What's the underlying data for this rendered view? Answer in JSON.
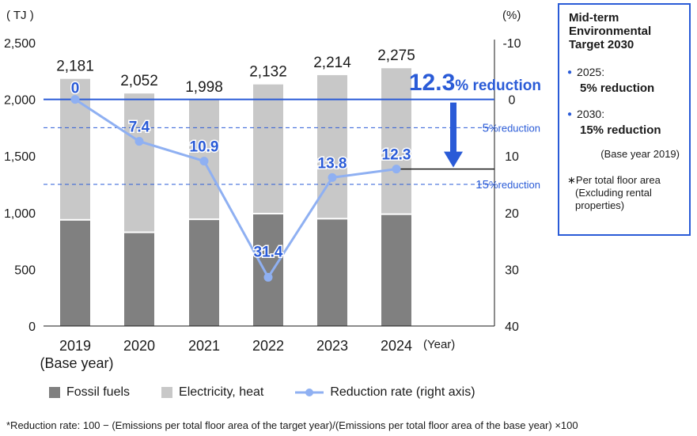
{
  "chart_data": {
    "type": "bar",
    "stacked": true,
    "units_left": "( TJ )",
    "units_right": "(%)",
    "categories": [
      "2019",
      "2020",
      "2021",
      "2022",
      "2023",
      "2024"
    ],
    "category_sub": [
      "(Base year)",
      "",
      "",
      "",
      "",
      ""
    ],
    "x_unit": "(Year)",
    "totals": [
      2181,
      2052,
      1998,
      2132,
      2214,
      2275
    ],
    "total_labels": [
      "2,181",
      "2,052",
      "1,998",
      "2,132",
      "2,214",
      "2,275"
    ],
    "series": [
      {
        "name": "Fossil fuels",
        "color": "#808080",
        "values": [
          930,
          820,
          935,
          985,
          940,
          980
        ]
      },
      {
        "name": "Electricity, heat",
        "color": "#c8c8c8",
        "values": [
          1251,
          1232,
          1063,
          1147,
          1274,
          1295
        ]
      }
    ],
    "line_series": {
      "name": "Reduction rate (right axis)",
      "color": "#8fb0f2",
      "values": [
        0,
        7.4,
        10.9,
        31.4,
        13.8,
        12.3
      ],
      "labels": [
        "0",
        "7.4",
        "10.9",
        "31.4",
        "13.8",
        "12.3"
      ]
    },
    "ylim_left": [
      0,
      2500
    ],
    "yticks_left": [
      "0",
      "500",
      "1,000",
      "1,500",
      "2,000",
      "2,500"
    ],
    "ylim_right": [
      -10,
      40
    ],
    "yticks_right": [
      "-10",
      "0",
      "10",
      "20",
      "30",
      "40"
    ],
    "reference_lines": [
      {
        "value": 5,
        "label_num": "5",
        "label_text": "reduction"
      },
      {
        "value": 15,
        "label_num": "15",
        "label_text": "reduction"
      }
    ],
    "highlight": {
      "num": "12.3",
      "text": "% reduction",
      "value": 12.3
    }
  },
  "target_box": {
    "title": "Mid-term Environmental Target 2030",
    "items": [
      {
        "year": "2025:",
        "value": "5% reduction"
      },
      {
        "year": "2030:",
        "value": "15% reduction"
      }
    ],
    "base": "(Base year 2019)",
    "note_line1": "∗Per total floor area",
    "note_line2": "(Excluding rental properties)"
  },
  "legend": {
    "fossil": "Fossil fuels",
    "electricity": "Electricity, heat",
    "rate": "Reduction rate (right axis)"
  },
  "footnote": "*Reduction rate: 100 − (Emissions per total floor area of the target year)/(Emissions per total floor area of the base year) ×100",
  "colors": {
    "accent": "#2a5bd7",
    "line": "#8fb0f2",
    "fossil": "#808080",
    "electricity": "#c8c8c8"
  }
}
